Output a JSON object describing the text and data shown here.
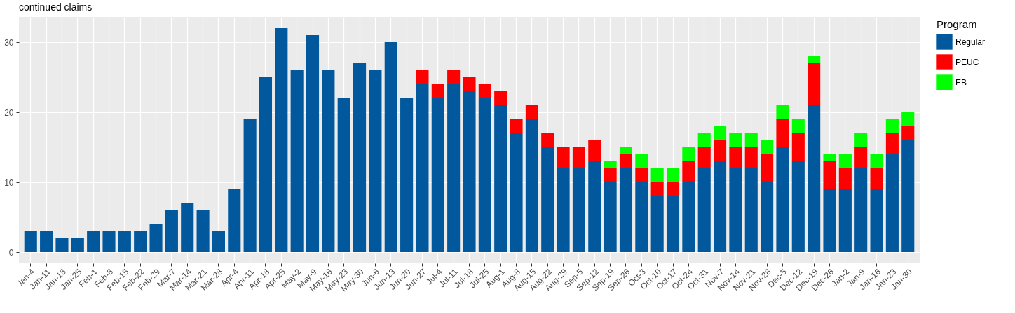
{
  "chart_data": {
    "type": "bar",
    "title": "continued claims",
    "legend_title": "Program",
    "stacked": true,
    "legend": "right",
    "grid": true,
    "categories": [
      "Jan-4",
      "Jan-11",
      "Jan-18",
      "Jan-25",
      "Feb-1",
      "Feb-8",
      "Feb-15",
      "Feb-22",
      "Feb-29",
      "Mar-7",
      "Mar-14",
      "Mar-21",
      "Mar-28",
      "Apr-4",
      "Apr-11",
      "Apr-18",
      "Apr-25",
      "May-2",
      "May-9",
      "May-16",
      "May-23",
      "May-30",
      "Jun-6",
      "Jun-13",
      "Jun-20",
      "Jun-27",
      "Jul-4",
      "Jul-11",
      "Jul-18",
      "Jul-25",
      "Aug-1",
      "Aug-8",
      "Aug-15",
      "Aug-22",
      "Aug-29",
      "Sep-5",
      "Sep-12",
      "Sep-19",
      "Sep-26",
      "Oct-3",
      "Oct-10",
      "Oct-17",
      "Oct-24",
      "Oct-31",
      "Nov-7",
      "Nov-14",
      "Nov-21",
      "Nov-28",
      "Dec-5",
      "Dec-12",
      "Dec-19",
      "Dec-26",
      "Jan-2",
      "Jan-9",
      "Jan-16",
      "Jan-23",
      "Jan-30"
    ],
    "series": [
      {
        "name": "Regular",
        "color": "#01589c",
        "values": [
          3,
          3,
          2,
          2,
          3,
          3,
          3,
          3,
          4,
          6,
          7,
          6,
          3,
          9,
          19,
          25,
          32,
          26,
          31,
          26,
          22,
          27,
          26,
          30,
          22,
          24,
          22,
          24,
          23,
          22,
          21,
          17,
          19,
          15,
          12,
          12,
          13,
          10,
          12,
          10,
          8,
          8,
          10,
          12,
          13,
          12,
          12,
          10,
          15,
          13,
          21,
          9,
          9,
          12,
          9,
          14,
          16
        ]
      },
      {
        "name": "PEUC",
        "color": "#ff0000",
        "values": [
          null,
          null,
          null,
          null,
          null,
          null,
          null,
          null,
          null,
          null,
          null,
          null,
          null,
          null,
          null,
          null,
          null,
          null,
          null,
          null,
          null,
          null,
          null,
          null,
          null,
          2,
          2,
          2,
          2,
          2,
          2,
          2,
          2,
          2,
          3,
          3,
          3,
          2,
          2,
          2,
          2,
          2,
          3,
          3,
          3,
          3,
          3,
          4,
          4,
          4,
          6,
          4,
          3,
          3,
          3,
          3,
          2
        ]
      },
      {
        "name": "EB",
        "color": "#00ff00",
        "values": [
          null,
          null,
          null,
          null,
          null,
          null,
          null,
          null,
          null,
          null,
          null,
          null,
          null,
          null,
          null,
          null,
          null,
          null,
          null,
          null,
          null,
          null,
          null,
          null,
          null,
          null,
          null,
          null,
          null,
          null,
          null,
          null,
          null,
          null,
          null,
          null,
          null,
          1,
          1,
          2,
          2,
          2,
          2,
          2,
          2,
          2,
          2,
          2,
          2,
          2,
          1,
          1,
          2,
          2,
          2,
          2,
          2
        ]
      }
    ],
    "ylim": [
      -1.6,
      33.6
    ],
    "yticks": [
      0,
      10,
      20,
      30
    ]
  }
}
